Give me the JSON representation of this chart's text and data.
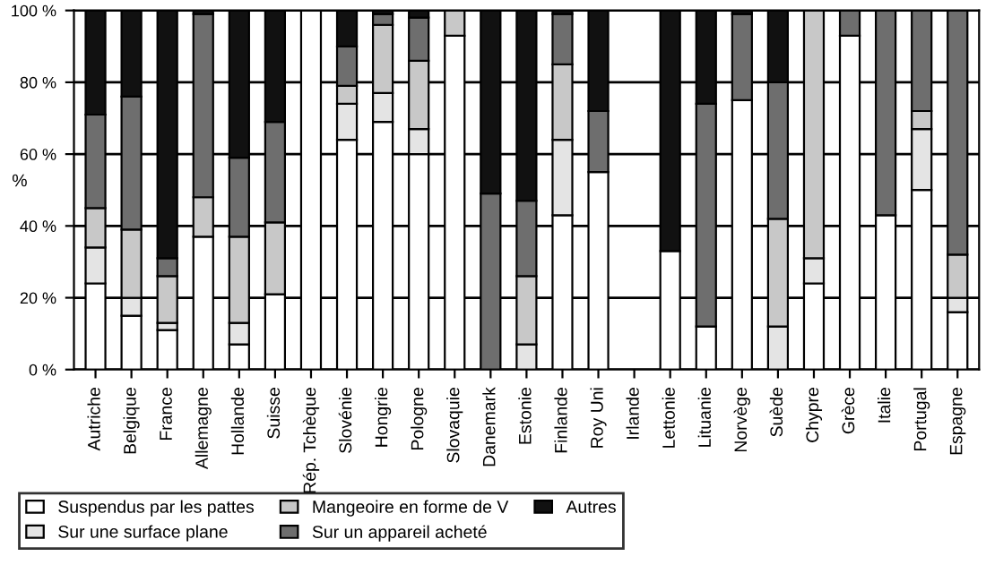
{
  "chart_data": {
    "type": "bar",
    "stacked": true,
    "ylabel": "%",
    "categories": [
      "Autriche",
      "Belgique",
      "France",
      "Allemagne",
      "Hollande",
      "Suisse",
      "Rép. Tchèque",
      "Slovénie",
      "Hongrie",
      "Pologne",
      "Slovaquie",
      "Danemark",
      "Estonie",
      "Finlande",
      "Roy Uni",
      "Irlande",
      "Lettonie",
      "Lituanie",
      "Norvège",
      "Suède",
      "Chypre",
      "Grèce",
      "Italie",
      "Portugal",
      "Espagne"
    ],
    "series": [
      {
        "name": "Suspendus par les pattes",
        "color": "#ffffff",
        "values": [
          24,
          15,
          11,
          37,
          7,
          21,
          100,
          64,
          69,
          60,
          93,
          0,
          0,
          43,
          55,
          null,
          33,
          12,
          75,
          0,
          24,
          93,
          43,
          50,
          16
        ]
      },
      {
        "name": "Sur une surface plane",
        "color": "#e4e4e4",
        "values": [
          10,
          5,
          2,
          0,
          6,
          0,
          0,
          10,
          8,
          7,
          0,
          0,
          7,
          21,
          0,
          null,
          0,
          0,
          0,
          12,
          7,
          0,
          0,
          17,
          4
        ]
      },
      {
        "name": "Mangeoire en forme de V",
        "color": "#c8c8c8",
        "values": [
          11,
          19,
          13,
          11,
          24,
          20,
          0,
          5,
          19,
          19,
          7,
          0,
          19,
          21,
          0,
          null,
          0,
          0,
          0,
          30,
          69,
          0,
          0,
          5,
          12
        ]
      },
      {
        "name": "Sur un appareil acheté",
        "color": "#6e6e6e",
        "values": [
          26,
          37,
          5,
          51,
          22,
          28,
          0,
          11,
          3,
          12,
          0,
          49,
          21,
          14,
          17,
          null,
          0,
          62,
          24,
          38,
          0,
          7,
          57,
          28,
          68
        ]
      },
      {
        "name": "Autres",
        "color": "#111111",
        "values": [
          29,
          24,
          69,
          1,
          41,
          31,
          0,
          10,
          1,
          2,
          0,
          51,
          53,
          1,
          28,
          null,
          67,
          26,
          1,
          20,
          0,
          0,
          0,
          0,
          0
        ]
      }
    ],
    "ylim": [
      0,
      100
    ],
    "yticks": [
      {
        "value": 0,
        "label": "0 %"
      },
      {
        "value": 20,
        "label": "20 %"
      },
      {
        "value": 40,
        "label": "40 %"
      },
      {
        "value": 60,
        "label": "60 %"
      },
      {
        "value": 80,
        "label": "80 %"
      },
      {
        "value": 100,
        "label": "100 %"
      }
    ],
    "grid": "y",
    "legend": "bottom"
  }
}
